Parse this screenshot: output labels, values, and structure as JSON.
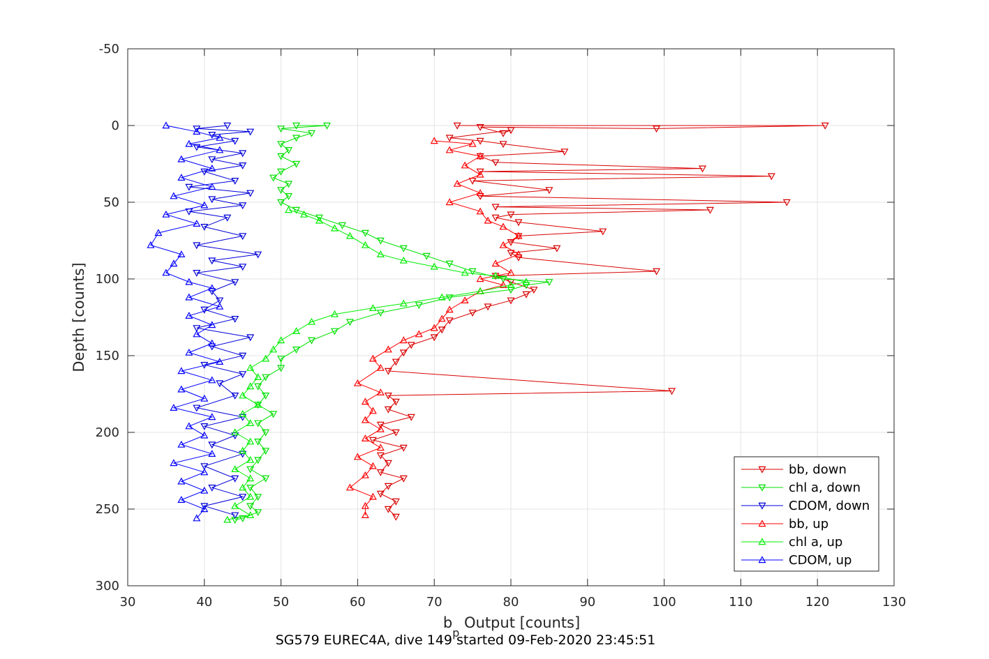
{
  "chart_data": {
    "type": "line",
    "caption": "SG579 EUREC4A, dive 149 started 09-Feb-2020 23:45:51",
    "xlabel_main": "b",
    "xlabel_sub": "p",
    "xlabel_rest": " Output [counts]",
    "ylabel": "Depth [counts]",
    "xlim": [
      30,
      130
    ],
    "ylim": [
      -50,
      300
    ],
    "y_reversed": true,
    "grid": true,
    "xticks": [
      "30",
      "40",
      "50",
      "60",
      "70",
      "80",
      "90",
      "100",
      "110",
      "120",
      "130"
    ],
    "yticks": [
      "-50",
      "0",
      "50",
      "100",
      "150",
      "200",
      "250",
      "300"
    ],
    "legend_position": "bottom-right",
    "colors": {
      "bb": "#d90000",
      "chl": "#00e000",
      "cdom": "#0000d9",
      "grid": "#e3e3e3",
      "axis": "#262626"
    },
    "series": [
      {
        "name": "bb, down",
        "color": "#d90000",
        "marker": "triangle-down",
        "points": [
          [
            73,
            0
          ],
          [
            121,
            0
          ],
          [
            99,
            2
          ],
          [
            76,
            1
          ],
          [
            79,
            5
          ],
          [
            80,
            3
          ],
          [
            72,
            8
          ],
          [
            76,
            10
          ],
          [
            79,
            12
          ],
          [
            87,
            17
          ],
          [
            76,
            20
          ],
          [
            78,
            24
          ],
          [
            105,
            28
          ],
          [
            76,
            30
          ],
          [
            114,
            33
          ],
          [
            75,
            36
          ],
          [
            85,
            42
          ],
          [
            76,
            46
          ],
          [
            116,
            50
          ],
          [
            78,
            53
          ],
          [
            106,
            55
          ],
          [
            80,
            58
          ],
          [
            78,
            60
          ],
          [
            81,
            63
          ],
          [
            92,
            69
          ],
          [
            81,
            72
          ],
          [
            80,
            76
          ],
          [
            86,
            80
          ],
          [
            80,
            83
          ],
          [
            81,
            86
          ],
          [
            99,
            95
          ],
          [
            78,
            98
          ],
          [
            80,
            102
          ],
          [
            83,
            107
          ],
          [
            82,
            110
          ],
          [
            80,
            114
          ],
          [
            77,
            118
          ],
          [
            75,
            122
          ],
          [
            72,
            127
          ],
          [
            71,
            133
          ],
          [
            70,
            138
          ],
          [
            67,
            143
          ],
          [
            66,
            148
          ],
          [
            65,
            154
          ],
          [
            64,
            160
          ],
          [
            101,
            173
          ],
          [
            64,
            176
          ],
          [
            65,
            180
          ],
          [
            64,
            185
          ],
          [
            67,
            190
          ],
          [
            63,
            195
          ],
          [
            65,
            200
          ],
          [
            62,
            205
          ],
          [
            66,
            210
          ],
          [
            63,
            215
          ],
          [
            64,
            220
          ],
          [
            63,
            226
          ],
          [
            66,
            230
          ],
          [
            64,
            235
          ],
          [
            63,
            240
          ],
          [
            65,
            245
          ],
          [
            64,
            250
          ],
          [
            65,
            255
          ]
        ]
      },
      {
        "name": "chl a, down",
        "color": "#00e000",
        "marker": "triangle-down",
        "points": [
          [
            52,
            0
          ],
          [
            56,
            0
          ],
          [
            50,
            2
          ],
          [
            54,
            5
          ],
          [
            52,
            8
          ],
          [
            50,
            12
          ],
          [
            51,
            16
          ],
          [
            50,
            20
          ],
          [
            52,
            25
          ],
          [
            50,
            30
          ],
          [
            49,
            34
          ],
          [
            51,
            38
          ],
          [
            50,
            42
          ],
          [
            51,
            46
          ],
          [
            50,
            50
          ],
          [
            52,
            55
          ],
          [
            55,
            60
          ],
          [
            58,
            65
          ],
          [
            61,
            70
          ],
          [
            63,
            75
          ],
          [
            66,
            80
          ],
          [
            69,
            85
          ],
          [
            72,
            90
          ],
          [
            75,
            95
          ],
          [
            79,
            100
          ],
          [
            85,
            102
          ],
          [
            82,
            104
          ],
          [
            80,
            107
          ],
          [
            72,
            112
          ],
          [
            68,
            117
          ],
          [
            63,
            122
          ],
          [
            59,
            128
          ],
          [
            57,
            134
          ],
          [
            54,
            140
          ],
          [
            52,
            146
          ],
          [
            50,
            152
          ],
          [
            50,
            158
          ],
          [
            48,
            164
          ],
          [
            47,
            170
          ],
          [
            48,
            176
          ],
          [
            47,
            182
          ],
          [
            49,
            188
          ],
          [
            47,
            194
          ],
          [
            48,
            200
          ],
          [
            47,
            206
          ],
          [
            48,
            212
          ],
          [
            47,
            218
          ],
          [
            46,
            224
          ],
          [
            48,
            230
          ],
          [
            46,
            236
          ],
          [
            47,
            242
          ],
          [
            46,
            248
          ],
          [
            47,
            252
          ],
          [
            45,
            256
          ],
          [
            44,
            257
          ]
        ]
      },
      {
        "name": "CDOM, down",
        "color": "#0000d9",
        "marker": "triangle-down",
        "points": [
          [
            43,
            0
          ],
          [
            39,
            2
          ],
          [
            46,
            4
          ],
          [
            41,
            6
          ],
          [
            44,
            10
          ],
          [
            39,
            14
          ],
          [
            45,
            18
          ],
          [
            41,
            22
          ],
          [
            45,
            26
          ],
          [
            40,
            30
          ],
          [
            44,
            36
          ],
          [
            38,
            40
          ],
          [
            46,
            44
          ],
          [
            41,
            48
          ],
          [
            45,
            52
          ],
          [
            38,
            56
          ],
          [
            43,
            60
          ],
          [
            40,
            66
          ],
          [
            45,
            72
          ],
          [
            39,
            78
          ],
          [
            47,
            84
          ],
          [
            41,
            88
          ],
          [
            45,
            92
          ],
          [
            39,
            96
          ],
          [
            44,
            102
          ],
          [
            41,
            108
          ],
          [
            42,
            114
          ],
          [
            40,
            120
          ],
          [
            44,
            126
          ],
          [
            39,
            132
          ],
          [
            46,
            138
          ],
          [
            41,
            144
          ],
          [
            45,
            150
          ],
          [
            40,
            156
          ],
          [
            45,
            162
          ],
          [
            42,
            168
          ],
          [
            44,
            176
          ],
          [
            39,
            184
          ],
          [
            45,
            190
          ],
          [
            40,
            196
          ],
          [
            44,
            202
          ],
          [
            41,
            208
          ],
          [
            45,
            214
          ],
          [
            40,
            222
          ],
          [
            44,
            230
          ],
          [
            41,
            236
          ],
          [
            45,
            242
          ],
          [
            40,
            248
          ],
          [
            44,
            254
          ]
        ]
      },
      {
        "name": "bb, up",
        "color": "#ff0000",
        "marker": "triangle-up",
        "points": [
          [
            70,
            10
          ],
          [
            75,
            12
          ],
          [
            72,
            16
          ],
          [
            76,
            20
          ],
          [
            74,
            26
          ],
          [
            76,
            32
          ],
          [
            73,
            38
          ],
          [
            76,
            44
          ],
          [
            72,
            50
          ],
          [
            76,
            56
          ],
          [
            77,
            62
          ],
          [
            79,
            66
          ],
          [
            81,
            72
          ],
          [
            79,
            78
          ],
          [
            81,
            84
          ],
          [
            78,
            90
          ],
          [
            80,
            96
          ],
          [
            76,
            100
          ],
          [
            79,
            104
          ],
          [
            76,
            108
          ],
          [
            74,
            114
          ],
          [
            72,
            120
          ],
          [
            71,
            126
          ],
          [
            70,
            132
          ],
          [
            68,
            136
          ],
          [
            66,
            140
          ],
          [
            64,
            146
          ],
          [
            62,
            152
          ],
          [
            63,
            158
          ],
          [
            60,
            168
          ],
          [
            63,
            174
          ],
          [
            61,
            180
          ],
          [
            62,
            186
          ],
          [
            61,
            192
          ],
          [
            63,
            198
          ],
          [
            61,
            204
          ],
          [
            63,
            210
          ],
          [
            60,
            216
          ],
          [
            62,
            222
          ],
          [
            61,
            228
          ],
          [
            59,
            236
          ],
          [
            62,
            242
          ],
          [
            61,
            248
          ],
          [
            61,
            254
          ]
        ]
      },
      {
        "name": "chl a, up",
        "color": "#00ee00",
        "marker": "triangle-up",
        "points": [
          [
            51,
            55
          ],
          [
            53,
            58
          ],
          [
            55,
            62
          ],
          [
            57,
            67
          ],
          [
            59,
            72
          ],
          [
            61,
            78
          ],
          [
            63,
            84
          ],
          [
            66,
            88
          ],
          [
            70,
            92
          ],
          [
            74,
            96
          ],
          [
            78,
            98
          ],
          [
            82,
            102
          ],
          [
            80,
            104
          ],
          [
            76,
            108
          ],
          [
            71,
            112
          ],
          [
            66,
            116
          ],
          [
            62,
            119
          ],
          [
            57,
            123
          ],
          [
            54,
            128
          ],
          [
            52,
            134
          ],
          [
            50,
            140
          ],
          [
            49,
            146
          ],
          [
            48,
            152
          ],
          [
            46,
            158
          ],
          [
            47,
            164
          ],
          [
            46,
            170
          ],
          [
            45,
            176
          ],
          [
            47,
            182
          ],
          [
            45,
            188
          ],
          [
            46,
            194
          ],
          [
            44,
            200
          ],
          [
            46,
            206
          ],
          [
            45,
            212
          ],
          [
            46,
            218
          ],
          [
            44,
            224
          ],
          [
            46,
            230
          ],
          [
            45,
            236
          ],
          [
            46,
            242
          ],
          [
            44,
            248
          ],
          [
            46,
            254
          ],
          [
            43,
            257
          ]
        ]
      },
      {
        "name": "CDOM, up",
        "color": "#0000ff",
        "marker": "triangle-up",
        "points": [
          [
            35,
            0
          ],
          [
            39,
            4
          ],
          [
            42,
            8
          ],
          [
            38,
            12
          ],
          [
            42,
            16
          ],
          [
            37,
            22
          ],
          [
            41,
            28
          ],
          [
            37,
            34
          ],
          [
            41,
            40
          ],
          [
            36,
            46
          ],
          [
            40,
            52
          ],
          [
            35,
            58
          ],
          [
            39,
            64
          ],
          [
            34,
            70
          ],
          [
            33,
            78
          ],
          [
            37,
            84
          ],
          [
            36,
            90
          ],
          [
            35,
            96
          ],
          [
            38,
            102
          ],
          [
            41,
            106
          ],
          [
            38,
            112
          ],
          [
            42,
            118
          ],
          [
            38,
            124
          ],
          [
            41,
            130
          ],
          [
            39,
            136
          ],
          [
            41,
            142
          ],
          [
            38,
            148
          ],
          [
            42,
            154
          ],
          [
            37,
            160
          ],
          [
            41,
            166
          ],
          [
            37,
            172
          ],
          [
            40,
            178
          ],
          [
            36,
            184
          ],
          [
            41,
            190
          ],
          [
            38,
            196
          ],
          [
            40,
            202
          ],
          [
            37,
            208
          ],
          [
            41,
            214
          ],
          [
            36,
            220
          ],
          [
            40,
            226
          ],
          [
            37,
            232
          ],
          [
            40,
            238
          ],
          [
            37,
            244
          ],
          [
            40,
            250
          ],
          [
            39,
            256
          ]
        ]
      }
    ]
  }
}
